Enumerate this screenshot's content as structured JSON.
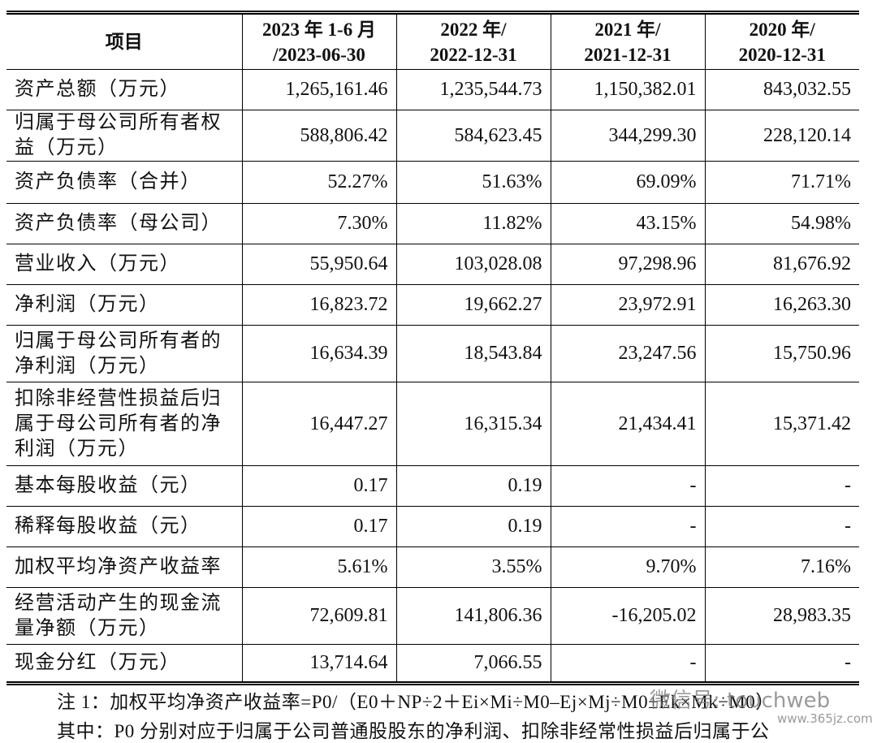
{
  "table": {
    "header": [
      "项目",
      "2023 年 1-6 月\n/2023-06-30",
      "2022 年/\n2022-12-31",
      "2021 年/\n2021-12-31",
      "2020 年/\n2020-12-31"
    ],
    "rows": [
      [
        "资产总额（万元）",
        "1,265,161.46",
        "1,235,544.73",
        "1,150,382.01",
        "843,032.55"
      ],
      [
        "归属于母公司所有者权益（万元）",
        "588,806.42",
        "584,623.45",
        "344,299.30",
        "228,120.14"
      ],
      [
        "资产负债率（合并）",
        "52.27%",
        "51.63%",
        "69.09%",
        "71.71%"
      ],
      [
        "资产负债率（母公司）",
        "7.30%",
        "11.82%",
        "43.15%",
        "54.98%"
      ],
      [
        "营业收入（万元）",
        "55,950.64",
        "103,028.08",
        "97,298.96",
        "81,676.92"
      ],
      [
        "净利润（万元）",
        "16,823.72",
        "19,662.27",
        "23,972.91",
        "16,263.30"
      ],
      [
        "归属于母公司所有者的净利润（万元）",
        "16,634.39",
        "18,543.84",
        "23,247.56",
        "15,750.96"
      ],
      [
        "扣除非经营性损益后归属于母公司所有者的净利润（万元）",
        "16,447.27",
        "16,315.34",
        "21,434.41",
        "15,371.42"
      ],
      [
        "基本每股收益（元）",
        "0.17",
        "0.19",
        "-",
        "-"
      ],
      [
        "稀释每股收益（元）",
        "0.17",
        "0.19",
        "-",
        "-"
      ],
      [
        "加权平均净资产收益率",
        "5.61%",
        "3.55%",
        "9.70%",
        "7.16%"
      ],
      [
        "经营活动产生的现金流量净额（万元）",
        "72,609.81",
        "141,806.36",
        "-16,205.02",
        "28,983.35"
      ],
      [
        "现金分红（万元）",
        "13,714.64",
        "7,066.55",
        "-",
        "-"
      ]
    ]
  },
  "notes": [
    "注 1：加权平均净资产收益率=P0/（E0＋NP÷2＋Ei×Mi÷M0–Ej×Mj÷M0±Ek×Mk÷M0）",
    "其中：P0 分别对应于归属于公司普通股股东的净利润、扣除非经常性损益后归属于公"
  ],
  "watermark": [
    "微信号: touchweb",
    "www.365jz.com"
  ]
}
